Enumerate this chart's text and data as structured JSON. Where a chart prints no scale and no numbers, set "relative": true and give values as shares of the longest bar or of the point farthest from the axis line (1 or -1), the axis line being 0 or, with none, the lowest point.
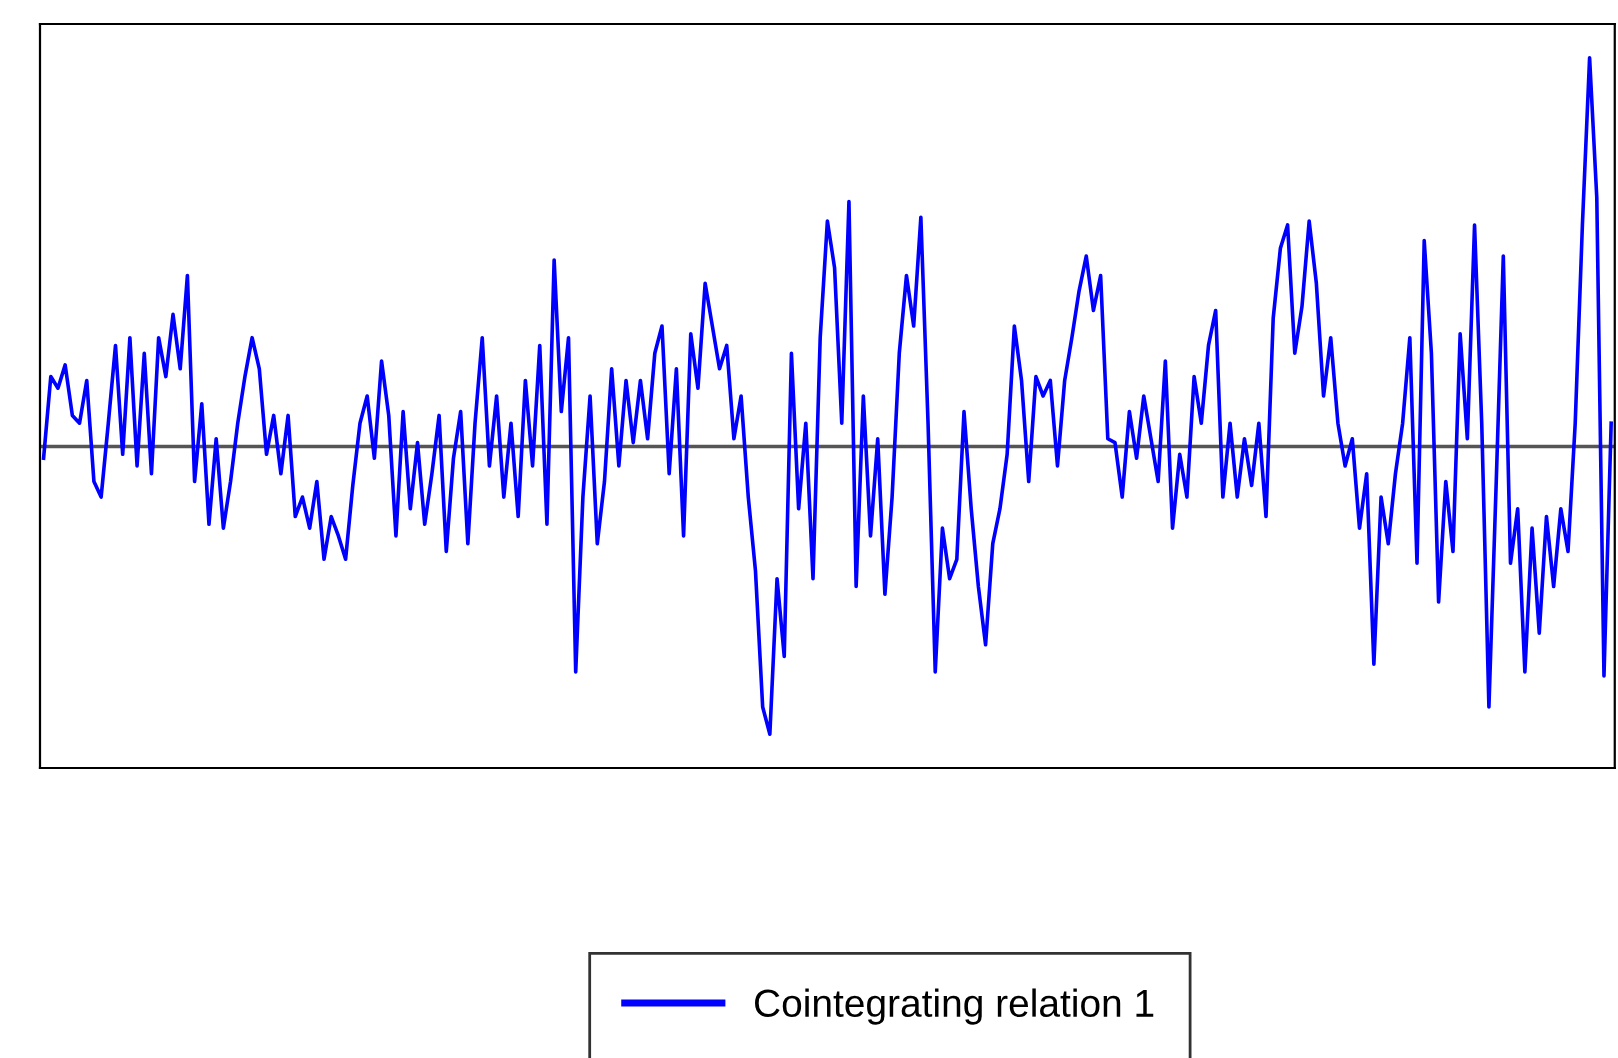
{
  "chart_data": {
    "type": "line",
    "relative": true,
    "legend": "bottom",
    "grid": false,
    "categories": [
      null,
      null,
      null,
      null,
      null,
      null,
      null,
      null,
      null,
      null,
      null,
      null,
      null,
      null,
      null,
      null,
      null,
      null,
      null,
      null,
      null,
      null,
      null,
      null,
      null,
      null,
      null,
      null,
      null,
      null,
      null,
      null,
      null,
      null,
      null,
      null,
      null,
      null,
      null,
      null,
      null,
      null,
      null,
      null,
      null,
      null,
      null,
      null,
      null,
      null,
      null,
      null,
      null,
      null,
      null,
      null,
      null,
      null,
      null,
      null,
      null,
      null,
      null,
      null,
      null,
      null,
      null,
      null,
      null,
      null,
      null,
      null,
      null,
      null,
      null,
      null,
      null,
      null,
      null,
      null,
      null,
      null,
      null,
      null,
      null,
      null,
      null,
      null,
      null,
      null,
      null,
      null,
      null,
      null,
      null,
      null,
      null,
      null,
      null,
      null,
      null,
      null,
      null,
      null,
      null,
      null,
      null,
      null,
      null,
      null,
      null,
      null,
      null,
      null,
      null,
      null,
      null,
      null,
      null,
      null,
      null,
      null,
      null,
      null,
      null,
      null,
      null,
      null,
      null,
      null,
      null,
      null,
      null,
      null,
      null,
      null,
      null,
      null,
      null,
      null,
      null,
      null,
      null,
      null,
      null,
      null,
      null,
      null,
      null,
      null,
      null,
      null,
      null,
      null,
      null,
      null,
      null,
      null,
      null,
      null,
      null,
      null,
      null,
      null,
      null,
      null,
      null,
      null,
      null,
      null,
      null,
      null,
      null,
      null,
      null,
      null,
      null,
      null,
      null,
      null,
      null,
      null,
      null,
      null,
      null,
      null,
      null,
      null,
      null,
      null,
      null,
      null,
      null,
      null,
      null,
      null,
      null,
      null,
      null,
      null,
      null,
      null,
      null,
      null,
      null,
      null,
      null,
      null,
      null,
      null,
      null,
      null,
      null,
      null,
      null,
      null,
      null,
      null,
      null
    ],
    "series": [
      {
        "name": "Cointegrating relation 1",
        "color": "#0000ff",
        "values": [
          -0.03,
          0.18,
          0.15,
          0.21,
          0.08,
          0.06,
          0.17,
          -0.09,
          -0.13,
          0.06,
          0.26,
          -0.02,
          0.28,
          -0.05,
          0.24,
          -0.07,
          0.28,
          0.18,
          0.34,
          0.2,
          0.44,
          -0.09,
          0.11,
          -0.2,
          0.02,
          -0.21,
          -0.09,
          0.06,
          0.18,
          0.28,
          0.2,
          -0.02,
          0.08,
          -0.07,
          0.08,
          -0.18,
          -0.13,
          -0.21,
          -0.09,
          -0.29,
          -0.18,
          -0.23,
          -0.29,
          -0.1,
          0.06,
          0.13,
          -0.03,
          0.22,
          0.08,
          -0.23,
          0.09,
          -0.16,
          0.01,
          -0.2,
          -0.07,
          0.08,
          -0.27,
          -0.03,
          0.09,
          -0.25,
          0.06,
          0.28,
          -0.05,
          0.13,
          -0.13,
          0.06,
          -0.18,
          0.17,
          -0.05,
          0.26,
          -0.2,
          0.48,
          0.09,
          0.28,
          -0.58,
          -0.13,
          0.13,
          -0.25,
          -0.09,
          0.2,
          -0.05,
          0.17,
          0.01,
          0.17,
          0.02,
          0.24,
          0.31,
          -0.07,
          0.2,
          -0.23,
          0.29,
          0.15,
          0.42,
          0.31,
          0.2,
          0.26,
          0.02,
          0.13,
          -0.13,
          -0.32,
          -0.67,
          -0.74,
          -0.34,
          -0.54,
          0.24,
          -0.16,
          0.06,
          -0.34,
          0.28,
          0.58,
          0.46,
          0.06,
          0.63,
          -0.36,
          0.13,
          -0.23,
          0.02,
          -0.38,
          -0.13,
          0.24,
          0.44,
          0.31,
          0.59,
          0.06,
          -0.58,
          -0.21,
          -0.34,
          -0.29,
          0.09,
          -0.16,
          -0.36,
          -0.51,
          -0.25,
          -0.16,
          -0.02,
          0.31,
          0.17,
          -0.09,
          0.18,
          0.13,
          0.17,
          -0.05,
          0.17,
          0.28,
          0.4,
          0.49,
          0.35,
          0.44,
          0.02,
          0.01,
          -0.13,
          0.09,
          -0.03,
          0.13,
          0.02,
          -0.09,
          0.22,
          -0.21,
          -0.02,
          -0.13,
          0.18,
          0.06,
          0.26,
          0.35,
          -0.13,
          0.06,
          -0.13,
          0.02,
          -0.1,
          0.06,
          -0.18,
          0.33,
          0.51,
          0.57,
          0.24,
          0.36,
          0.58,
          0.42,
          0.13,
          0.28,
          0.06,
          -0.05,
          0.02,
          -0.21,
          -0.07,
          -0.56,
          -0.13,
          -0.25,
          -0.07,
          0.06,
          0.28,
          -0.3,
          0.53,
          0.24,
          -0.4,
          -0.09,
          -0.27,
          0.29,
          0.02,
          0.57,
          0.06,
          -0.67,
          -0.1,
          0.49,
          -0.3,
          -0.16,
          -0.58,
          -0.21,
          -0.48,
          -0.18,
          -0.36,
          -0.16,
          -0.27,
          0.06,
          0.57,
          1.0,
          0.64,
          -0.59,
          0.06
        ]
      }
    ],
    "ref_lines": [
      {
        "axis": "y",
        "value": 0,
        "color": "#555555"
      }
    ]
  }
}
